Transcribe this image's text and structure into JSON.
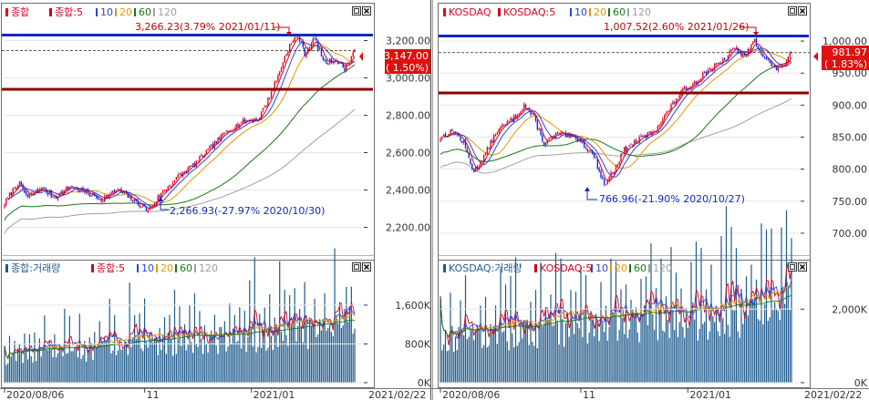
{
  "colors": {
    "up": "#e8001c",
    "down": "#0a28e6",
    "ma5": "#d2001e",
    "ma10": "#2846dc",
    "ma20": "#e69600",
    "ma60": "#147814",
    "ma120": "#a0a0a0",
    "volume": "#1e5a8c",
    "hline_blue": "#1428c8",
    "hline_red": "#8c0000",
    "price_badge": "#e01010"
  },
  "left": {
    "legend": {
      "series": "종합",
      "ma_label": "종합:5",
      "ma10": "10",
      "ma20": "20",
      "ma60": "60",
      "ma120": "120"
    },
    "vol_legend": {
      "series": "종합:거래량",
      "ma_label": "종합:5",
      "ma10": "10",
      "ma20": "20",
      "ma60": "60",
      "ma120": "120"
    },
    "high_annot": "3,266.23(3.79% 2021/01/11)",
    "low_annot": "2,266.93(-27.97% 2020/10/30)",
    "badge_price": "3,147.00",
    "badge_pct": "( 1.50%)",
    "y_ticks": [
      "3,200.00",
      "3,000.00",
      "2,800.00",
      "2,600.00",
      "2,400.00",
      "2,200.00"
    ],
    "vol_ticks": [
      "1,600K",
      "800K",
      "0K"
    ],
    "x_ticks": [
      "2020/08/06",
      "11",
      "2021/01",
      "2021/02/22"
    ]
  },
  "right": {
    "legend": {
      "series": "KOSDAQ",
      "ma_label": "KOSDAQ:5",
      "ma10": "10",
      "ma20": "20",
      "ma60": "60",
      "ma120": "120"
    },
    "vol_legend": {
      "series": "KOSDAQ:거래량",
      "ma_label": "KOSDAQ:5",
      "ma10": "10",
      "ma20": "20",
      "ma60": "60",
      "ma120": "120"
    },
    "high_annot": "1,007.52(2.60% 2021/01/26)",
    "low_annot": "766.96(-21.90% 2020/10/27)",
    "badge_price": "981.97",
    "badge_pct": "( 1.83%)",
    "y_ticks": [
      "1,000.00",
      "950.00",
      "900.00",
      "850.00",
      "800.00",
      "750.00",
      "700.00"
    ],
    "vol_ticks": [
      "2,000K",
      "0K"
    ],
    "x_ticks": [
      "2020/08/06",
      "11",
      "2021/01",
      "2021/02/22"
    ]
  },
  "chart_data": [
    {
      "type": "candlestick",
      "title": "종합",
      "x_range": [
        "2020/08/06",
        "2021/02/22"
      ],
      "ylim": [
        2100,
        3300
      ],
      "reference_lines": [
        3266.23,
        2940
      ],
      "annotations": [
        {
          "text": "3,266.23(3.79% 2021/01/11)",
          "value": 3266.23,
          "date": "2021/01/11"
        },
        {
          "text": "2,266.93(-27.97% 2020/10/30)",
          "value": 2266.93,
          "date": "2020/10/30"
        }
      ],
      "last_close": 3147.0,
      "keypoints": [
        [
          0,
          2330
        ],
        [
          8,
          2440
        ],
        [
          14,
          2360
        ],
        [
          22,
          2410
        ],
        [
          30,
          2360
        ],
        [
          40,
          2420
        ],
        [
          48,
          2390
        ],
        [
          58,
          2350
        ],
        [
          68,
          2400
        ],
        [
          80,
          2330
        ],
        [
          86,
          2290
        ],
        [
          94,
          2380
        ],
        [
          104,
          2470
        ],
        [
          114,
          2540
        ],
        [
          124,
          2630
        ],
        [
          134,
          2720
        ],
        [
          144,
          2770
        ],
        [
          152,
          2780
        ],
        [
          158,
          2880
        ],
        [
          164,
          3010
        ],
        [
          170,
          3160
        ],
        [
          176,
          3230
        ],
        [
          180,
          3130
        ],
        [
          186,
          3210
        ],
        [
          192,
          3080
        ],
        [
          198,
          3100
        ],
        [
          204,
          3050
        ],
        [
          210,
          3147
        ]
      ]
    },
    {
      "type": "candlestick",
      "title": "KOSDAQ",
      "x_range": [
        "2020/08/06",
        "2021/02/22"
      ],
      "ylim": [
        680,
        1030
      ],
      "reference_lines": [
        1007.52,
        915
      ],
      "annotations": [
        {
          "text": "1,007.52(2.60% 2021/01/26)",
          "value": 1007.52,
          "date": "2021/01/26"
        },
        {
          "text": "766.96(-21.90% 2020/10/27)",
          "value": 766.96,
          "date": "2020/10/27"
        }
      ],
      "last_close": 981.97,
      "keypoints": [
        [
          0,
          850
        ],
        [
          8,
          860
        ],
        [
          14,
          840
        ],
        [
          20,
          795
        ],
        [
          26,
          820
        ],
        [
          34,
          860
        ],
        [
          44,
          880
        ],
        [
          50,
          900
        ],
        [
          56,
          880
        ],
        [
          62,
          840
        ],
        [
          70,
          855
        ],
        [
          78,
          850
        ],
        [
          84,
          845
        ],
        [
          92,
          820
        ],
        [
          98,
          775
        ],
        [
          104,
          800
        ],
        [
          110,
          830
        ],
        [
          118,
          845
        ],
        [
          128,
          860
        ],
        [
          136,
          890
        ],
        [
          144,
          920
        ],
        [
          152,
          935
        ],
        [
          160,
          955
        ],
        [
          168,
          965
        ],
        [
          176,
          990
        ],
        [
          182,
          975
        ],
        [
          188,
          1000
        ],
        [
          194,
          975
        ],
        [
          200,
          955
        ],
        [
          206,
          965
        ],
        [
          210,
          982
        ]
      ]
    }
  ]
}
